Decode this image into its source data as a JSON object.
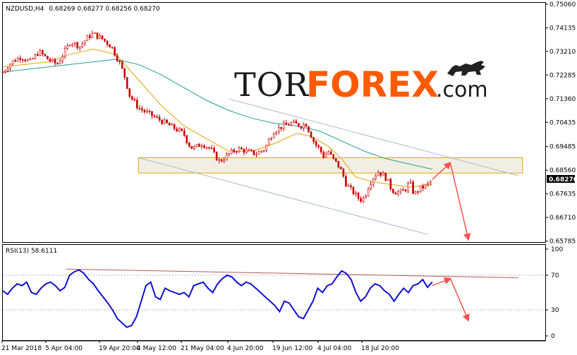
{
  "chart_data": [
    {
      "type": "candlestick",
      "symbol_label": "NZDUSD,H4",
      "ohlc_readout": "0.68269 0.68277 0.68256 0.68270",
      "current_price": "0.68270",
      "ylim": [
        0.6575,
        0.7511
      ],
      "price_ticks": [
        "0.75060",
        "0.74135",
        "0.73210",
        "0.72285",
        "0.71360",
        "0.70435",
        "0.69485",
        "0.68560",
        "0.67635",
        "0.66710",
        "0.65785"
      ],
      "time_ticks": [
        "21 Mar 2018",
        "5 Apr 04:00",
        "19 Apr 20:00",
        "4 May 12:00",
        "21 May 04:00",
        "4 Jun 20:00",
        "19 Jun 12:00",
        "4 Jul 04:00",
        "18 Jul 20:00"
      ],
      "close_path": [
        [
          0,
          0.724
        ],
        [
          2,
          0.728
        ],
        [
          4,
          0.73
        ],
        [
          6,
          0.728
        ],
        [
          8,
          0.732
        ],
        [
          10,
          0.729
        ],
        [
          12,
          0.727
        ],
        [
          14,
          0.733
        ],
        [
          15,
          0.736
        ],
        [
          17,
          0.734
        ],
        [
          19,
          0.738
        ],
        [
          20,
          0.739
        ],
        [
          22,
          0.737
        ],
        [
          24,
          0.734
        ],
        [
          26,
          0.727
        ],
        [
          27,
          0.722
        ],
        [
          28,
          0.715
        ],
        [
          30,
          0.71
        ],
        [
          32,
          0.708
        ],
        [
          34,
          0.706
        ],
        [
          36,
          0.704
        ],
        [
          38,
          0.702
        ],
        [
          40,
          0.7
        ],
        [
          41,
          0.696
        ],
        [
          42,
          0.694
        ],
        [
          44,
          0.696
        ],
        [
          46,
          0.694
        ],
        [
          47,
          0.691
        ],
        [
          48,
          0.689
        ],
        [
          50,
          0.692
        ],
        [
          52,
          0.694
        ],
        [
          54,
          0.693
        ],
        [
          56,
          0.692
        ],
        [
          58,
          0.694
        ],
        [
          59,
          0.698
        ],
        [
          60,
          0.701
        ],
        [
          62,
          0.703
        ],
        [
          64,
          0.704
        ],
        [
          66,
          0.703
        ],
        [
          67,
          0.704
        ],
        [
          68,
          0.7
        ],
        [
          69,
          0.696
        ],
        [
          70,
          0.694
        ],
        [
          71,
          0.691
        ],
        [
          72,
          0.693
        ],
        [
          73,
          0.69
        ],
        [
          74,
          0.688
        ],
        [
          75,
          0.685
        ],
        [
          76,
          0.68
        ],
        [
          77,
          0.678
        ],
        [
          78,
          0.676
        ],
        [
          79,
          0.674
        ],
        [
          80,
          0.675
        ],
        [
          81,
          0.68
        ],
        [
          82,
          0.683
        ],
        [
          83,
          0.685
        ],
        [
          84,
          0.684
        ],
        [
          85,
          0.682
        ],
        [
          86,
          0.678
        ],
        [
          87,
          0.677
        ],
        [
          88,
          0.677
        ],
        [
          89,
          0.678
        ],
        [
          90,
          0.681
        ],
        [
          91,
          0.676
        ],
        [
          92,
          0.678
        ],
        [
          94,
          0.68
        ],
        [
          95,
          0.682
        ]
      ],
      "ma_fast": [
        [
          0,
          0.726
        ],
        [
          5,
          0.727
        ],
        [
          10,
          0.728
        ],
        [
          15,
          0.731
        ],
        [
          20,
          0.733
        ],
        [
          25,
          0.731
        ],
        [
          30,
          0.721
        ],
        [
          35,
          0.711
        ],
        [
          40,
          0.703
        ],
        [
          45,
          0.698
        ],
        [
          50,
          0.693
        ],
        [
          55,
          0.693
        ],
        [
          60,
          0.696
        ],
        [
          65,
          0.7
        ],
        [
          68,
          0.699
        ],
        [
          72,
          0.695
        ],
        [
          75,
          0.69
        ],
        [
          78,
          0.683
        ],
        [
          82,
          0.681
        ],
        [
          86,
          0.68
        ],
        [
          90,
          0.679
        ],
        [
          95,
          0.68
        ]
      ],
      "ma_slow": [
        [
          0,
          0.724
        ],
        [
          5,
          0.725
        ],
        [
          10,
          0.726
        ],
        [
          15,
          0.727
        ],
        [
          20,
          0.728
        ],
        [
          25,
          0.729
        ],
        [
          30,
          0.727
        ],
        [
          35,
          0.723
        ],
        [
          40,
          0.718
        ],
        [
          45,
          0.713
        ],
        [
          50,
          0.709
        ],
        [
          55,
          0.706
        ],
        [
          60,
          0.704
        ],
        [
          65,
          0.703
        ],
        [
          70,
          0.701
        ],
        [
          75,
          0.697
        ],
        [
          80,
          0.693
        ],
        [
          85,
          0.69
        ],
        [
          90,
          0.688
        ],
        [
          95,
          0.686
        ]
      ],
      "channel_upper": [
        [
          50,
          0.7135
        ],
        [
          114,
          0.6835
        ]
      ],
      "channel_lower": [
        [
          30,
          0.6905
        ],
        [
          94,
          0.6605
        ]
      ],
      "zone": {
        "from": [
          30,
          0.6845
        ],
        "to": [
          115,
          0.6905
        ]
      },
      "forecast_up": [
        [
          95,
          0.682
        ],
        [
          99,
          0.6885
        ]
      ],
      "forecast_down": [
        [
          99,
          0.6885
        ],
        [
          103,
          0.6585
        ]
      ]
    },
    {
      "type": "line",
      "label": "RSI(13) 58.6111",
      "ylim": [
        0,
        100
      ],
      "ticks": [
        "100",
        "70",
        "30",
        "0"
      ],
      "levels": [
        70,
        30
      ],
      "values": [
        52,
        48,
        55,
        60,
        58,
        62,
        50,
        48,
        55,
        60,
        62,
        58,
        52,
        56,
        70,
        74,
        76,
        72,
        65,
        60,
        52,
        45,
        38,
        30,
        20,
        15,
        10,
        12,
        22,
        40,
        58,
        62,
        45,
        42,
        55,
        52,
        50,
        48,
        50,
        45,
        58,
        60,
        62,
        55,
        50,
        60,
        66,
        70,
        68,
        62,
        58,
        62,
        60,
        55,
        50,
        45,
        40,
        35,
        28,
        40,
        38,
        30,
        22,
        20,
        30,
        40,
        55,
        50,
        58,
        60,
        68,
        75,
        72,
        65,
        50,
        40,
        45,
        55,
        60,
        58,
        52,
        48,
        40,
        48,
        55,
        50,
        58,
        60,
        65,
        56,
        62
      ],
      "trend_line": [
        [
          14,
          77
        ],
        [
          114,
          67
        ]
      ],
      "forecast_up": [
        [
          95,
          58
        ],
        [
          99,
          66
        ]
      ],
      "forecast_down": [
        [
          99,
          66
        ],
        [
          103,
          18
        ]
      ]
    }
  ],
  "logo": {
    "part1": "TOR",
    "part2": "FOREX",
    "part3": ".com"
  },
  "colors": {
    "candle": "#cc0000",
    "ma_fast": "#e8a000",
    "ma_slow": "#20a090",
    "channel": "#a8bccd",
    "zone_fill": "#ece9dc",
    "zone_border": "#e5a800",
    "forecast": "#ff5050",
    "rsi_line": "#1010cc",
    "rsi_trend": "#b05a5a"
  }
}
